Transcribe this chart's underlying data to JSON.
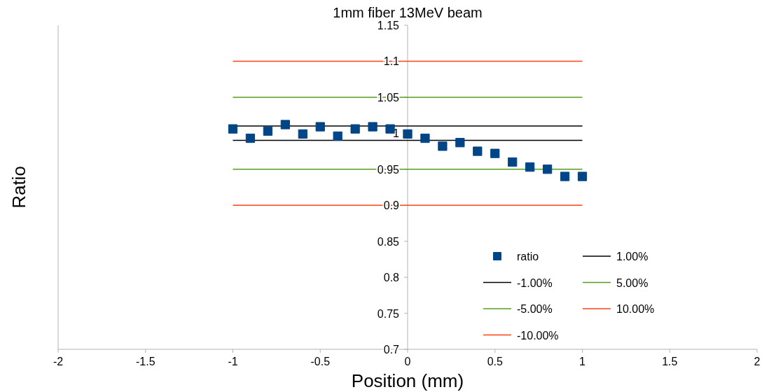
{
  "chart_data": {
    "type": "scatter",
    "title": "1mm fiber 13MeV beam",
    "xlabel": "Position (mm)",
    "ylabel": "Ratio",
    "xlim": [
      -2,
      2
    ],
    "xticks": [
      -2,
      -1.5,
      -1,
      -0.5,
      0,
      0.5,
      1,
      1.5,
      2
    ],
    "ylim": [
      0.7,
      1.15
    ],
    "yticks": [
      0.7,
      0.75,
      0.8,
      0.85,
      0.9,
      0.95,
      1,
      1.05,
      1.1,
      1.15
    ],
    "grid": false,
    "legend": "bottom right",
    "series": [
      {
        "name": "ratio",
        "marker": "square",
        "color": "#004586",
        "x": [
          -1,
          -0.9,
          -0.8,
          -0.7,
          -0.6,
          -0.5,
          -0.4,
          -0.3,
          -0.2,
          -0.1,
          0,
          0.1,
          0.2,
          0.3,
          0.4,
          0.5,
          0.6,
          0.7,
          0.8,
          0.9,
          1
        ],
        "values": [
          1.006,
          0.993,
          1.003,
          1.012,
          0.999,
          1.009,
          0.996,
          1.006,
          1.009,
          1.006,
          0.999,
          0.993,
          0.982,
          0.987,
          0.975,
          0.972,
          0.96,
          0.953,
          0.95,
          0.94,
          0.94
        ]
      },
      {
        "name": "1.00%",
        "type": "line",
        "color": "#000000",
        "x": [
          -1,
          1
        ],
        "values": [
          1.01,
          1.01
        ]
      },
      {
        "name": "-1.00%",
        "type": "line",
        "color": "#000000",
        "x": [
          -1,
          1
        ],
        "values": [
          0.99,
          0.99
        ]
      },
      {
        "name": "5.00%",
        "type": "line",
        "color": "#579d1c",
        "x": [
          -1,
          1
        ],
        "values": [
          1.05,
          1.05
        ]
      },
      {
        "name": "-5.00%",
        "type": "line",
        "color": "#579d1c",
        "x": [
          -1,
          1
        ],
        "values": [
          0.95,
          0.95
        ]
      },
      {
        "name": "10.00%",
        "type": "line",
        "color": "#ff420e",
        "x": [
          -1,
          1
        ],
        "values": [
          1.1,
          1.1
        ]
      },
      {
        "name": "-10.00%",
        "type": "line",
        "color": "#ff420e",
        "x": [
          -1,
          1
        ],
        "values": [
          0.9,
          0.9
        ]
      }
    ]
  }
}
